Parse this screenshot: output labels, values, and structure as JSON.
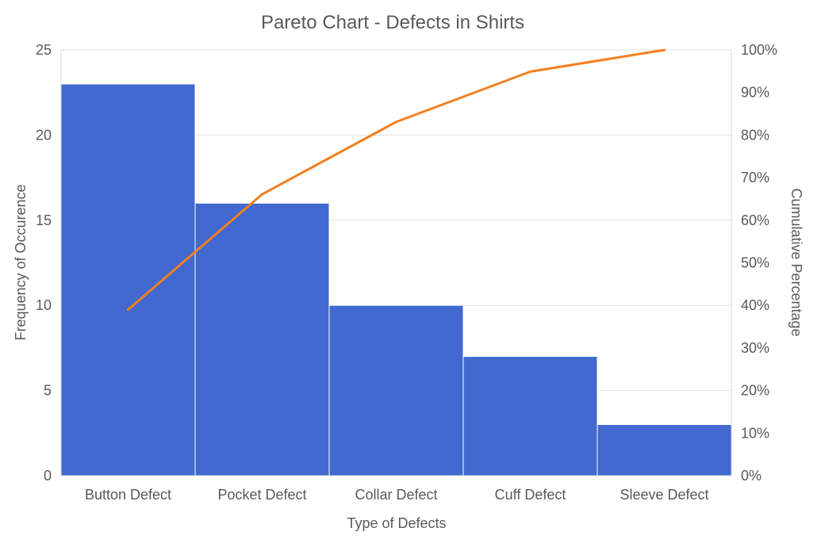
{
  "chart_data": {
    "type": "bar",
    "title": "Pareto Chart - Defects in Shirts",
    "xlabel": "Type of Defects",
    "ylabel": "Frequency of Occurence",
    "y2label": "Cumulative Percentage",
    "categories": [
      "Button Defect",
      "Pocket Defect",
      "Collar Defect",
      "Cuff Defect",
      "Sleeve Defect"
    ],
    "ylim": [
      0,
      25
    ],
    "yticks": [
      "0",
      "5",
      "10",
      "15",
      "20",
      "25"
    ],
    "y2lim": [
      0,
      100
    ],
    "y2ticks": [
      "0%",
      "10%",
      "20%",
      "30%",
      "40%",
      "50%",
      "60%",
      "70%",
      "80%",
      "90%",
      "100%"
    ],
    "series": [
      {
        "type": "bar",
        "values": [
          23,
          16,
          10,
          7,
          3
        ],
        "color": "#4169CF"
      },
      {
        "type": "line",
        "axis": "secondary",
        "values": [
          39.0,
          66.1,
          83.1,
          94.9,
          100.0
        ],
        "color": "#F47F20"
      }
    ],
    "grid": true,
    "legend": "none"
  }
}
